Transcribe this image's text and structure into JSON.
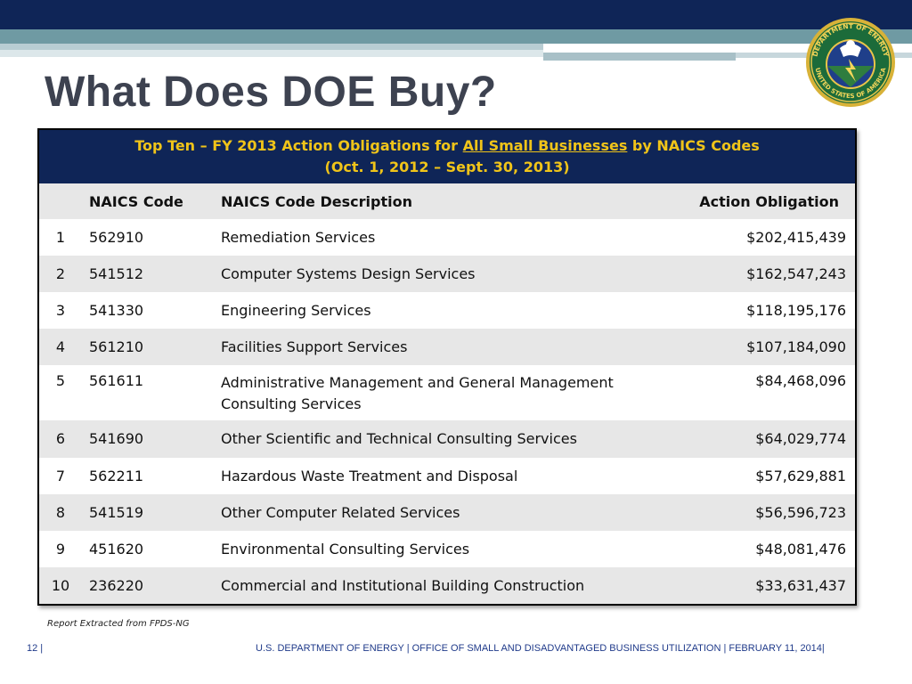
{
  "slide": {
    "title": "What Does DOE Buy?",
    "note": "Report Extracted from FPDS-NG",
    "footer_left": "12 |",
    "footer_right": "U.S. DEPARTMENT OF ENERGY |  OFFICE OF SMALL AND DISADVANTAGED BUSINESS UTILIZATION |  FEBRUARY 11, 2014|"
  },
  "seal": {
    "text_top": "DEPARTMENT OF ENERGY",
    "text_bottom": "UNITED STATES OF AMERICA"
  },
  "table": {
    "header_line1_pre": "Top Ten – FY 2013 Action Obligations for ",
    "header_line1_link": "All Small Businesses",
    "header_line1_post": " by NAICS Codes",
    "header_line2": "(Oct. 1, 2012 – Sept. 30, 2013)",
    "columns": [
      "",
      "NAICS Code",
      "NAICS Code Description",
      "Action Obligation"
    ],
    "rows": [
      {
        "rank": "1",
        "code": "562910",
        "desc": "Remediation Services",
        "amount": "$202,415,439"
      },
      {
        "rank": "2",
        "code": "541512",
        "desc": "Computer Systems Design Services",
        "amount": "$162,547,243"
      },
      {
        "rank": "3",
        "code": "541330",
        "desc": "Engineering Services",
        "amount": "$118,195,176"
      },
      {
        "rank": "4",
        "code": "561210",
        "desc": "Facilities Support Services",
        "amount": "$107,184,090"
      },
      {
        "rank": "5",
        "code": "561611",
        "desc": "Administrative Management and General Management Consulting Services",
        "amount": "$84,468,096"
      },
      {
        "rank": "6",
        "code": "541690",
        "desc": "Other Scientific and Technical Consulting Services",
        "amount": "$64,029,774"
      },
      {
        "rank": "7",
        "code": "562211",
        "desc": "Hazardous Waste Treatment and Disposal",
        "amount": "$57,629,881"
      },
      {
        "rank": "8",
        "code": "541519",
        "desc": "Other Computer Related Services",
        "amount": "$56,596,723"
      },
      {
        "rank": "9",
        "code": "451620",
        "desc": "Environmental Consulting Services",
        "amount": "$48,081,476"
      },
      {
        "rank": "10",
        "code": "236220",
        "desc": "Commercial and Institutional Building Construction",
        "amount": "$33,631,437"
      }
    ]
  }
}
